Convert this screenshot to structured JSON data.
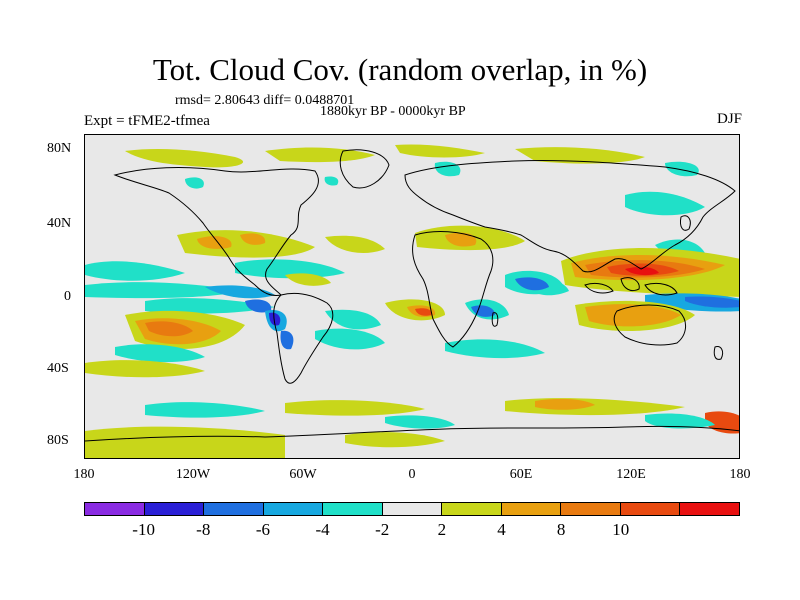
{
  "title": "Tot. Cloud Cov. (random overlap, in %)",
  "stats_line": "rmsd= 2.80643 diff= 0.0488701",
  "period_line": "1880kyr BP - 0000kyr BP",
  "experiment": "Expt = tFME2-tfmea",
  "season": "DJF",
  "map": {
    "lat_labels": [
      "80N",
      "40N",
      "0",
      "40S",
      "80S"
    ],
    "lon_labels": [
      "180",
      "120W",
      "60W",
      "0",
      "60E",
      "120E",
      "180"
    ],
    "background_color": "#e8e8e8"
  },
  "colorbar": {
    "colors": [
      "#8a2be2",
      "#2a1fd6",
      "#1f6fe0",
      "#17a8e0",
      "#20e0c8",
      "#e8e8e8",
      "#c8d61a",
      "#e8a010",
      "#e87a10",
      "#e84a10",
      "#e81010"
    ],
    "labels": [
      "-10",
      "-8",
      "-6",
      "-4",
      "-2",
      "2",
      "4",
      "8",
      "10"
    ]
  }
}
